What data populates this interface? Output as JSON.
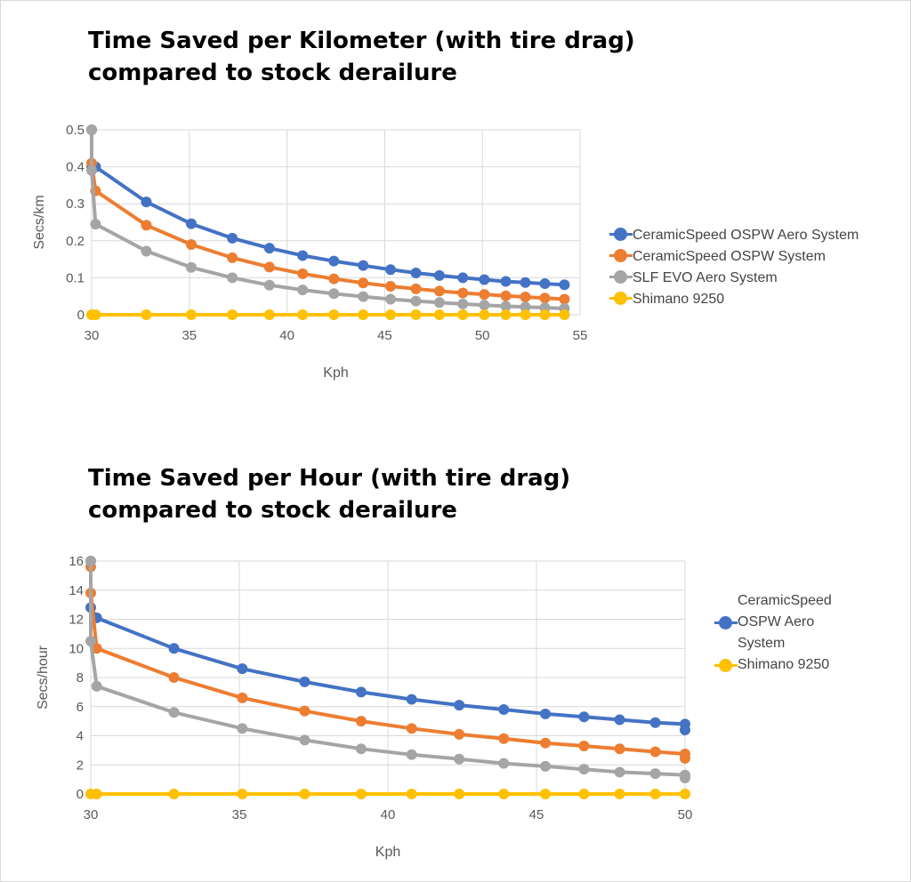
{
  "colors": {
    "blue": "#4472c4",
    "orange": "#ed7d31",
    "gray": "#a5a5a5",
    "yellow": "#ffc000",
    "grid": "#d9d9d9",
    "tick": "#595959"
  },
  "titles": {
    "chart1": [
      "Time Saved per Kilometer (with tire drag)",
      "compared to stock derailure"
    ],
    "chart2": [
      "Time Saved per Hour (with tire drag)",
      "compared to stock derailure"
    ]
  },
  "chart_data": [
    {
      "type": "line",
      "title": "Time Saved per Kilometer (with tire drag) compared to stock derailure",
      "xlabel": "Kph",
      "ylabel": "Secs/km",
      "xlim": [
        30,
        55
      ],
      "ylim": [
        0,
        0.5
      ],
      "xticks": [
        "30",
        "35",
        "40",
        "45",
        "50",
        "55"
      ],
      "yticks": [
        "0",
        "0.1",
        "0.2",
        "0.3",
        "0.4",
        "0.5"
      ],
      "grid": true,
      "legend_position": "right",
      "series": [
        {
          "name": "CeramicSpeed OSPW Aero System",
          "color": "#4472c4",
          "x": [
            30,
            30,
            30.2,
            32.8,
            35.1,
            37.2,
            39.1,
            40.8,
            42.4,
            43.9,
            45.3,
            46.6,
            47.8,
            49,
            50.1,
            51.2,
            52.2,
            53.2,
            54.2
          ],
          "y": [
            0.5,
            0.4,
            0.4,
            0.305,
            0.246,
            0.207,
            0.18,
            0.16,
            0.145,
            0.133,
            0.122,
            0.113,
            0.106,
            0.1,
            0.095,
            0.09,
            0.087,
            0.084,
            0.081
          ]
        },
        {
          "name": "CeramicSpeed OSPW System",
          "color": "#ed7d31",
          "x": [
            30,
            30,
            30.2,
            32.8,
            35.1,
            37.2,
            39.1,
            40.8,
            42.4,
            43.9,
            45.3,
            46.6,
            47.8,
            49,
            50.1,
            51.2,
            52.2,
            53.2,
            54.2
          ],
          "y": [
            0.5,
            0.41,
            0.335,
            0.242,
            0.19,
            0.154,
            0.129,
            0.111,
            0.097,
            0.086,
            0.077,
            0.07,
            0.064,
            0.059,
            0.055,
            0.051,
            0.048,
            0.045,
            0.042
          ]
        },
        {
          "name": "SLF EVO Aero System",
          "color": "#a5a5a5",
          "x": [
            30,
            30,
            30.2,
            32.8,
            35.1,
            37.2,
            39.1,
            40.8,
            42.4,
            43.9,
            45.3,
            46.6,
            47.8,
            49,
            50.1,
            51.2,
            52.2,
            53.2,
            54.2
          ],
          "y": [
            0.5,
            0.39,
            0.245,
            0.172,
            0.128,
            0.1,
            0.08,
            0.067,
            0.057,
            0.049,
            0.042,
            0.037,
            0.033,
            0.029,
            0.026,
            0.023,
            0.021,
            0.019,
            0.017
          ]
        },
        {
          "name": "Shimano 9250",
          "color": "#ffc000",
          "x": [
            30,
            30.2,
            32.8,
            35.1,
            37.2,
            39.1,
            40.8,
            42.4,
            43.9,
            45.3,
            46.6,
            47.8,
            49,
            50.1,
            51.2,
            52.2,
            53.2,
            54.2
          ],
          "y": [
            0,
            0,
            0,
            0,
            0,
            0,
            0,
            0,
            0,
            0,
            0,
            0,
            0,
            0,
            0,
            0,
            0,
            0
          ]
        }
      ]
    },
    {
      "type": "line",
      "title": "Time Saved per Hour (with tire drag) compared to stock derailure",
      "xlabel": "Kph",
      "ylabel": "Secs/hour",
      "xlim": [
        30,
        50
      ],
      "ylim": [
        0,
        16
      ],
      "xticks": [
        "30",
        "35",
        "40",
        "45",
        "50"
      ],
      "yticks": [
        "0",
        "2",
        "4",
        "6",
        "8",
        "10",
        "12",
        "14",
        "16"
      ],
      "grid": true,
      "legend_position": "right",
      "series": [
        {
          "name": "CeramicSpeed OSPW Aero System",
          "color": "#4472c4",
          "x": [
            30,
            30,
            30.2,
            32.8,
            35.1,
            37.2,
            39.1,
            40.8,
            42.4,
            43.9,
            45.3,
            46.6,
            47.8,
            49,
            50,
            50
          ],
          "y": [
            16,
            12.8,
            12.1,
            10,
            8.6,
            7.7,
            7,
            6.5,
            6.1,
            5.8,
            5.5,
            5.3,
            5.1,
            4.9,
            4.8,
            4.4
          ]
        },
        {
          "name": "",
          "color": "#ed7d31",
          "x": [
            30,
            30,
            30.2,
            32.8,
            35.1,
            37.2,
            39.1,
            40.8,
            42.4,
            43.9,
            45.3,
            46.6,
            47.8,
            49,
            50,
            50
          ],
          "y": [
            15.6,
            13.8,
            10,
            8,
            6.6,
            5.7,
            5,
            4.5,
            4.1,
            3.8,
            3.5,
            3.3,
            3.1,
            2.9,
            2.75,
            2.45
          ]
        },
        {
          "name": "",
          "color": "#a5a5a5",
          "x": [
            30,
            30,
            30.2,
            32.8,
            35.1,
            37.2,
            39.1,
            40.8,
            42.4,
            43.9,
            45.3,
            46.6,
            47.8,
            49,
            50,
            50
          ],
          "y": [
            16,
            10.5,
            7.4,
            5.6,
            4.5,
            3.7,
            3.1,
            2.7,
            2.4,
            2.1,
            1.9,
            1.7,
            1.5,
            1.4,
            1.3,
            1.1
          ]
        },
        {
          "name": "Shimano 9250",
          "color": "#ffc000",
          "x": [
            30,
            30.2,
            32.8,
            35.1,
            37.2,
            39.1,
            40.8,
            42.4,
            43.9,
            45.3,
            46.6,
            47.8,
            49,
            50
          ],
          "y": [
            0,
            0,
            0,
            0,
            0,
            0,
            0,
            0,
            0,
            0,
            0,
            0,
            0,
            0
          ]
        }
      ]
    }
  ],
  "legends": {
    "chart1": [
      {
        "label": "CeramicSpeed OSPW Aero System",
        "color": "#4472c4"
      },
      {
        "label": "CeramicSpeed OSPW System",
        "color": "#ed7d31"
      },
      {
        "label": "SLF EVO Aero System",
        "color": "#a5a5a5"
      },
      {
        "label": "Shimano 9250",
        "color": "#ffc000"
      }
    ],
    "chart2": [
      {
        "label": "CeramicSpeed OSPW Aero System",
        "color": "#4472c4"
      },
      {
        "label": "Shimano 9250",
        "color": "#ffc000"
      }
    ]
  }
}
